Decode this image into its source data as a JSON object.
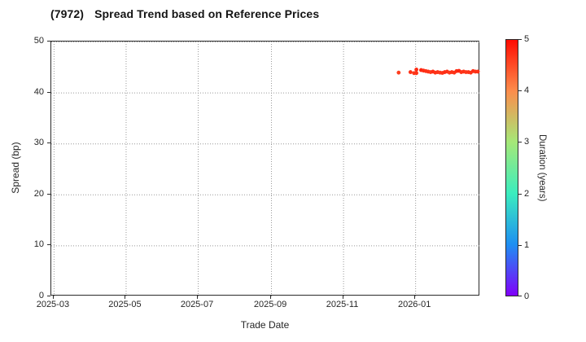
{
  "chart_data": {
    "type": "scatter",
    "title_code": "(7972)",
    "title_text": "Spread Trend based on Reference Prices",
    "xlabel": "Trade Date",
    "ylabel": "Spread (bp)",
    "xlim": [
      "2025-02-27",
      "2026-02-25"
    ],
    "ylim": [
      0,
      50
    ],
    "yticks": [
      0,
      10,
      20,
      30,
      40,
      50
    ],
    "xticks": [
      {
        "label": "2025-03",
        "date": "2025-03-01"
      },
      {
        "label": "2025-05",
        "date": "2025-05-01"
      },
      {
        "label": "2025-07",
        "date": "2025-07-01"
      },
      {
        "label": "2025-09",
        "date": "2025-09-01"
      },
      {
        "label": "2025-11",
        "date": "2025-11-01"
      },
      {
        "label": "2026-01",
        "date": "2026-01-01"
      }
    ],
    "grid": true,
    "grid_color": "#999999",
    "spine_color": "#2a2a2a",
    "colorbar": {
      "label": "Duration (years)",
      "lim": [
        0,
        5
      ],
      "ticks": [
        0,
        1,
        2,
        3,
        4,
        5
      ],
      "stops": [
        "#8000fa",
        "#1e8ff2",
        "#3bedbe",
        "#a5e878",
        "#fc8d4c",
        "#ff0b01"
      ]
    },
    "series": [
      {
        "name": "spread-points",
        "marker_radius": 2.4,
        "points": [
          {
            "date": "2025-12-18",
            "spread": 43.9,
            "duration": 4.6
          },
          {
            "date": "2025-12-28",
            "spread": 44.0,
            "duration": 4.7
          },
          {
            "date": "2025-12-31",
            "spread": 43.8,
            "duration": 4.65
          },
          {
            "date": "2026-01-02",
            "spread": 44.5,
            "duration": 4.75
          },
          {
            "date": "2026-01-02",
            "spread": 43.8,
            "duration": 4.7
          },
          {
            "date": "2026-01-06",
            "spread": 44.4,
            "duration": 4.8
          },
          {
            "date": "2026-01-08",
            "spread": 44.3,
            "duration": 4.75
          },
          {
            "date": "2026-01-10",
            "spread": 44.2,
            "duration": 4.7
          },
          {
            "date": "2026-01-12",
            "spread": 44.1,
            "duration": 4.7
          },
          {
            "date": "2026-01-14",
            "spread": 44.0,
            "duration": 4.65
          },
          {
            "date": "2026-01-16",
            "spread": 44.1,
            "duration": 4.75
          },
          {
            "date": "2026-01-18",
            "spread": 43.9,
            "duration": 4.7
          },
          {
            "date": "2026-01-20",
            "spread": 44.0,
            "duration": 4.7
          },
          {
            "date": "2026-01-22",
            "spread": 43.9,
            "duration": 4.65
          },
          {
            "date": "2026-01-24",
            "spread": 43.85,
            "duration": 4.7
          },
          {
            "date": "2026-01-26",
            "spread": 44.0,
            "duration": 4.75
          },
          {
            "date": "2026-01-28",
            "spread": 44.1,
            "duration": 4.7
          },
          {
            "date": "2026-01-30",
            "spread": 43.9,
            "duration": 4.65
          },
          {
            "date": "2026-02-01",
            "spread": 44.0,
            "duration": 4.7
          },
          {
            "date": "2026-02-03",
            "spread": 43.9,
            "duration": 4.7
          },
          {
            "date": "2026-02-05",
            "spread": 44.2,
            "duration": 4.75
          },
          {
            "date": "2026-02-07",
            "spread": 44.25,
            "duration": 4.8
          },
          {
            "date": "2026-02-09",
            "spread": 44.0,
            "duration": 4.7
          },
          {
            "date": "2026-02-11",
            "spread": 44.1,
            "duration": 4.7
          },
          {
            "date": "2026-02-13",
            "spread": 44.0,
            "duration": 4.65
          },
          {
            "date": "2026-02-15",
            "spread": 44.0,
            "duration": 4.7
          },
          {
            "date": "2026-02-17",
            "spread": 43.9,
            "duration": 4.7
          },
          {
            "date": "2026-02-19",
            "spread": 44.2,
            "duration": 4.75
          },
          {
            "date": "2026-02-21",
            "spread": 44.1,
            "duration": 4.7
          },
          {
            "date": "2026-02-23",
            "spread": 44.1,
            "duration": 4.7
          }
        ]
      }
    ]
  }
}
